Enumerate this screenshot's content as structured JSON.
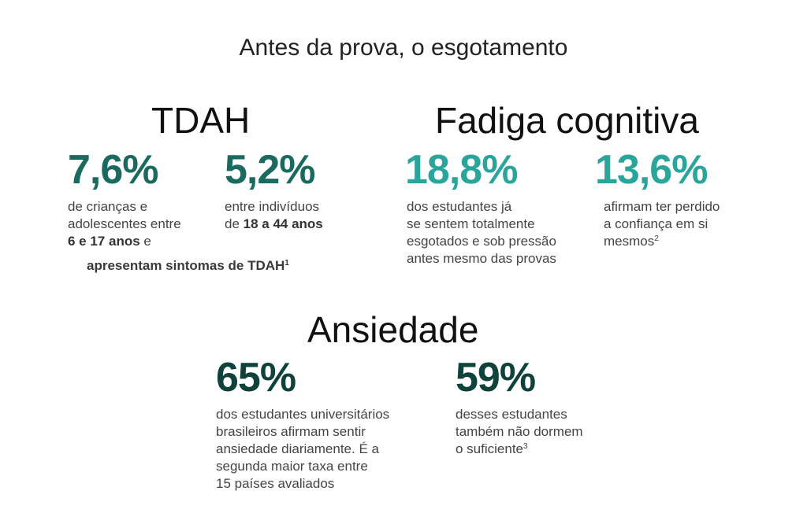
{
  "header": {
    "title": "Antes da prova, o esgotamento"
  },
  "tdah": {
    "title": "TDAH",
    "stat1": {
      "value": "7,6%",
      "desc_line1": "de crianças e",
      "desc_line2": "adolescentes entre",
      "desc_bold": "6 e 17 anos",
      "desc_tail": " e"
    },
    "stat2": {
      "value": "5,2%",
      "desc_line1": "entre indivíduos",
      "desc_prefix": "de ",
      "desc_bold": "18 a 44 anos"
    },
    "note": {
      "text": "apresentam sintomas de TDAH",
      "sup": "1"
    }
  },
  "fadiga": {
    "title": "Fadiga cognitiva",
    "stat1": {
      "value": "18,8%",
      "lines": [
        "dos estudantes já",
        "se sentem totalmente",
        "esgotados e sob pressão",
        "antes mesmo das provas"
      ]
    },
    "stat2": {
      "value": "13,6%",
      "lines": [
        "afirmam ter perdido",
        "a confiança em si"
      ],
      "last_line": "mesmos",
      "sup": "2"
    }
  },
  "ansiedade": {
    "title": "Ansiedade",
    "stat1": {
      "value": "65%",
      "lines": [
        "dos estudantes universitários",
        "brasileiros afirmam sentir",
        "ansiedade diariamente. É a",
        "segunda maior taxa entre",
        "15 países avaliados"
      ]
    },
    "stat2": {
      "value": "59%",
      "lines": [
        "desses estudantes",
        "também não dormem"
      ],
      "last_line": "o suficiente",
      "sup": "3"
    }
  },
  "colors": {
    "tdah_accent": "#1b6a60",
    "fadiga_accent": "#2aa59b",
    "ansiedade_accent": "#0f423b"
  }
}
